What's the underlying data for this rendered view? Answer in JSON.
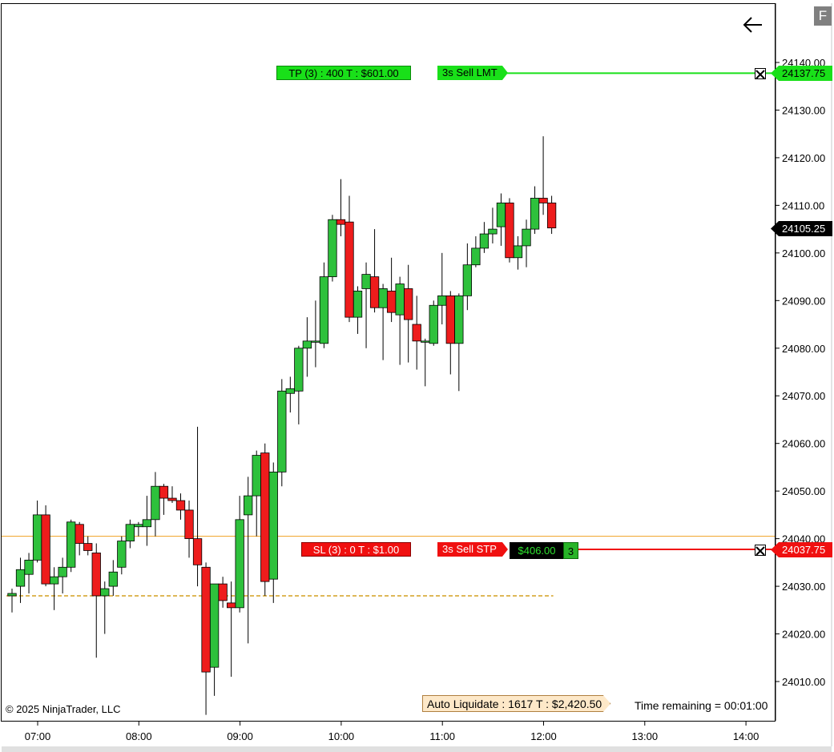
{
  "chart_data": {
    "type": "candlestick",
    "time_axis": [
      "07:00",
      "08:00",
      "09:00",
      "10:00",
      "11:00",
      "12:00",
      "13:00",
      "14:00"
    ],
    "price_axis": [
      "24140.00",
      "24130.00",
      "24120.00",
      "24110.00",
      "24100.00",
      "24090.00",
      "24080.00",
      "24070.00",
      "24060.00",
      "24050.00",
      "24040.00",
      "24030.00",
      "24020.00",
      "24010.00"
    ],
    "ylim": [
      24002.5,
      24151
    ],
    "bar_interval_minutes": 5,
    "candles": [
      {
        "o": 24028.0,
        "h": 24029.5,
        "l": 24024.5,
        "c": 24028.5
      },
      {
        "o": 24030.0,
        "h": 24036.0,
        "l": 24026.5,
        "c": 24033.5
      },
      {
        "o": 24032.5,
        "h": 24037.0,
        "l": 24028.5,
        "c": 24035.5
      },
      {
        "o": 24035.5,
        "h": 24048.0,
        "l": 24035.0,
        "c": 24045.0
      },
      {
        "o": 24045.0,
        "h": 24047.0,
        "l": 24030.0,
        "c": 24030.5
      },
      {
        "o": 24030.5,
        "h": 24034.0,
        "l": 24025.0,
        "c": 24032.0
      },
      {
        "o": 24032.0,
        "h": 24036.0,
        "l": 24028.5,
        "c": 24034.0
      },
      {
        "o": 24034.0,
        "h": 24044.0,
        "l": 24033.0,
        "c": 24043.5
      },
      {
        "o": 24043.0,
        "h": 24043.5,
        "l": 24036.5,
        "c": 24039.0
      },
      {
        "o": 24039.0,
        "h": 24040.5,
        "l": 24036.5,
        "c": 24037.5
      },
      {
        "o": 24037.0,
        "h": 24039.0,
        "l": 24015.0,
        "c": 24028.0
      },
      {
        "o": 24028.0,
        "h": 24031.0,
        "l": 24020.0,
        "c": 24029.5
      },
      {
        "o": 24030.0,
        "h": 24035.5,
        "l": 24028.0,
        "c": 24033.0
      },
      {
        "o": 24034.0,
        "h": 24040.5,
        "l": 24032.5,
        "c": 24039.5
      },
      {
        "o": 24039.5,
        "h": 24044.0,
        "l": 24038.0,
        "c": 24043.0
      },
      {
        "o": 24042.5,
        "h": 24043.5,
        "l": 24040.5,
        "c": 24043.0
      },
      {
        "o": 24042.5,
        "h": 24049.0,
        "l": 24038.5,
        "c": 24044.0
      },
      {
        "o": 24044.0,
        "h": 24054.0,
        "l": 24040.5,
        "c": 24051.0
      },
      {
        "o": 24051.0,
        "h": 24051.5,
        "l": 24045.0,
        "c": 24048.5
      },
      {
        "o": 24048.5,
        "h": 24051.0,
        "l": 24047.5,
        "c": 24048.0
      },
      {
        "o": 24048.0,
        "h": 24049.5,
        "l": 24044.0,
        "c": 24046.0
      },
      {
        "o": 24046.0,
        "h": 24048.0,
        "l": 24036.0,
        "c": 24040.0
      },
      {
        "o": 24040.0,
        "h": 24063.5,
        "l": 24030.0,
        "c": 24034.5
      },
      {
        "o": 24034.0,
        "h": 24035.0,
        "l": 24003.0,
        "c": 24012.0
      },
      {
        "o": 24013.0,
        "h": 24030.5,
        "l": 24007.0,
        "c": 24030.5
      },
      {
        "o": 24030.5,
        "h": 24032.0,
        "l": 24025.5,
        "c": 24027.0
      },
      {
        "o": 24026.5,
        "h": 24031.0,
        "l": 24011.0,
        "c": 24025.5
      },
      {
        "o": 24025.5,
        "h": 24049.0,
        "l": 24024.5,
        "c": 24044.0
      },
      {
        "o": 24045.0,
        "h": 24053.0,
        "l": 24018.0,
        "c": 24049.0
      },
      {
        "o": 24049.0,
        "h": 24058.5,
        "l": 24040.5,
        "c": 24057.5
      },
      {
        "o": 24058.0,
        "h": 24060.0,
        "l": 24028.0,
        "c": 24031.0
      },
      {
        "o": 24031.5,
        "h": 24056.0,
        "l": 24026.5,
        "c": 24054.0
      },
      {
        "o": 24054.0,
        "h": 24073.5,
        "l": 24051.0,
        "c": 24071.0
      },
      {
        "o": 24070.5,
        "h": 24074.0,
        "l": 24066.5,
        "c": 24071.5
      },
      {
        "o": 24071.0,
        "h": 24080.5,
        "l": 24064.0,
        "c": 24080.0
      },
      {
        "o": 24080.0,
        "h": 24086.5,
        "l": 24074.0,
        "c": 24081.5
      },
      {
        "o": 24081.5,
        "h": 24090.0,
        "l": 24076.0,
        "c": 24081.5
      },
      {
        "o": 24081.0,
        "h": 24098.0,
        "l": 24080.0,
        "c": 24095.0
      },
      {
        "o": 24095.0,
        "h": 24108.0,
        "l": 24094.0,
        "c": 24107.0
      },
      {
        "o": 24107.0,
        "h": 24115.5,
        "l": 24103.5,
        "c": 24106.0
      },
      {
        "o": 24106.5,
        "h": 24112.0,
        "l": 24085.5,
        "c": 24086.5
      },
      {
        "o": 24086.5,
        "h": 24093.0,
        "l": 24083.0,
        "c": 24092.0
      },
      {
        "o": 24092.5,
        "h": 24098.0,
        "l": 24080.0,
        "c": 24095.5
      },
      {
        "o": 24095.0,
        "h": 24105.0,
        "l": 24087.5,
        "c": 24088.5
      },
      {
        "o": 24088.5,
        "h": 24093.5,
        "l": 24077.5,
        "c": 24092.5
      },
      {
        "o": 24092.0,
        "h": 24099.0,
        "l": 24085.5,
        "c": 24087.5
      },
      {
        "o": 24087.0,
        "h": 24095.0,
        "l": 24076.5,
        "c": 24093.5
      },
      {
        "o": 24092.5,
        "h": 24097.5,
        "l": 24077.0,
        "c": 24086.0
      },
      {
        "o": 24085.0,
        "h": 24091.0,
        "l": 24075.5,
        "c": 24081.5
      },
      {
        "o": 24081.5,
        "h": 24082.0,
        "l": 24072.0,
        "c": 24081.5
      },
      {
        "o": 24081.0,
        "h": 24090.0,
        "l": 24080.5,
        "c": 24089.0
      },
      {
        "o": 24089.0,
        "h": 24100.0,
        "l": 24085.0,
        "c": 24091.0
      },
      {
        "o": 24091.0,
        "h": 24092.0,
        "l": 24074.5,
        "c": 24081.0
      },
      {
        "o": 24081.0,
        "h": 24091.5,
        "l": 24071.0,
        "c": 24091.0
      },
      {
        "o": 24091.0,
        "h": 24102.0,
        "l": 24088.0,
        "c": 24097.5
      },
      {
        "o": 24097.5,
        "h": 24103.5,
        "l": 24097.0,
        "c": 24101.0
      },
      {
        "o": 24101.0,
        "h": 24106.5,
        "l": 24100.0,
        "c": 24104.0
      },
      {
        "o": 24104.0,
        "h": 24109.5,
        "l": 24102.0,
        "c": 24105.0
      },
      {
        "o": 24105.5,
        "h": 24112.5,
        "l": 24101.5,
        "c": 24110.5
      },
      {
        "o": 24110.5,
        "h": 24111.5,
        "l": 24098.0,
        "c": 24099.0
      },
      {
        "o": 24099.0,
        "h": 24103.5,
        "l": 24096.5,
        "c": 24101.5
      },
      {
        "o": 24101.5,
        "h": 24107.0,
        "l": 24097.0,
        "c": 24105.0
      },
      {
        "o": 24105.0,
        "h": 24114.0,
        "l": 24104.0,
        "c": 24111.5
      },
      {
        "o": 24111.5,
        "h": 24124.5,
        "l": 24108.0,
        "c": 24110.5
      },
      {
        "o": 24110.5,
        "h": 24112.0,
        "l": 24104.0,
        "c": 24105.25
      }
    ],
    "up_color": "#2ec13c",
    "down_color": "#ee1c1c",
    "current_price": "24105.25",
    "tp_price": "24137.75",
    "sl_price": "24037.75",
    "avg_line_price": 24028.0,
    "orange_line_price": 24040.5
  },
  "orders": {
    "tp_label": "TP (3)  :  400 T  :  $601.00",
    "tp_order_label": "3s  Sell LMT",
    "sl_label": "SL (3)  :  0 T  :  $1.00",
    "sl_order_label": "3s  Sell STP",
    "position_pnl": "$406.00",
    "position_qty": "3"
  },
  "footer": {
    "auto_liquidate": "Auto Liquidate :  1617 T :  $2,420.50",
    "time_remaining": "Time remaining = 00:01:00",
    "copyright": "© 2025 NinjaTrader, LLC"
  },
  "toolbar": {
    "f_label": "F"
  },
  "colors": {
    "tp_green": "#19e019",
    "sl_red": "#f01010",
    "price_flag_bg": "#000000",
    "avg_line": "#d4a020",
    "orange_line": "#f0a020"
  },
  "icons": {
    "back": "arrow-left-icon",
    "cancel_order": "close-box-icon"
  }
}
